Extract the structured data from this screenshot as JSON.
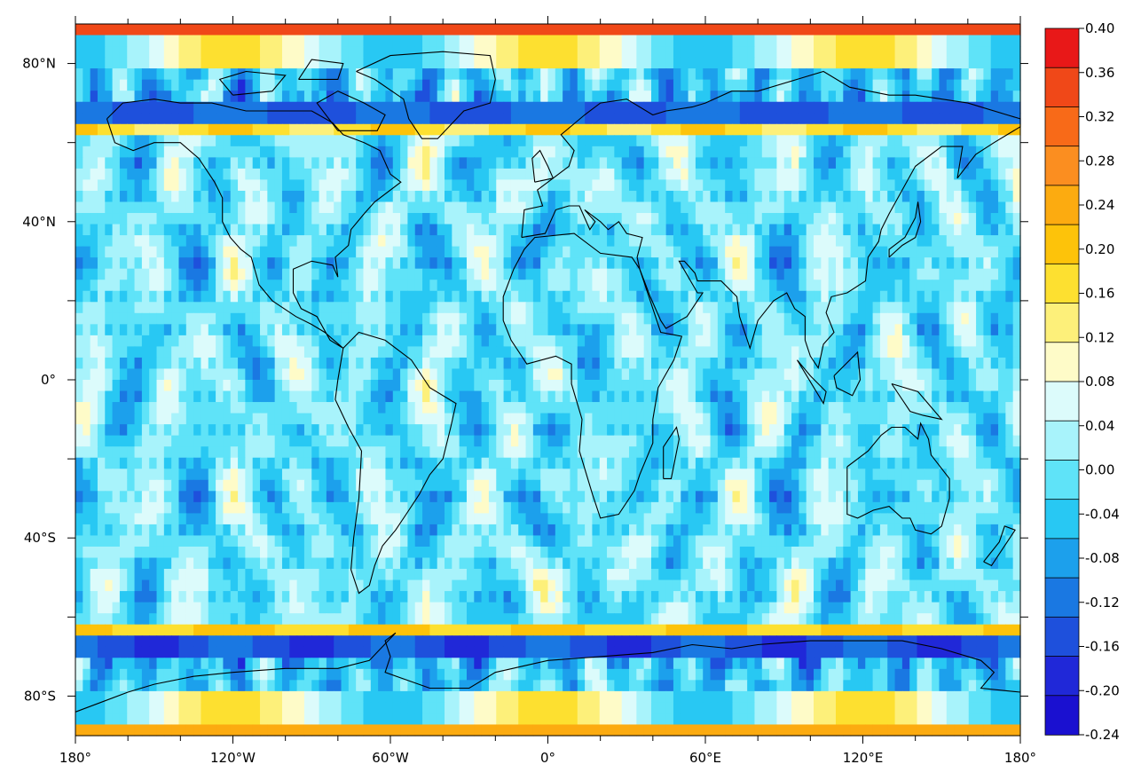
{
  "map": {
    "projection": "cylindrical-equidistant",
    "lon_range": [
      -180,
      180
    ],
    "lat_range": [
      -90,
      90
    ],
    "x_ticks": [
      {
        "lon": -180,
        "label": "180°"
      },
      {
        "lon": -120,
        "label": "120°W"
      },
      {
        "lon": -60,
        "label": "60°W"
      },
      {
        "lon": 0,
        "label": "0°"
      },
      {
        "lon": 60,
        "label": "60°E"
      },
      {
        "lon": 120,
        "label": "120°E"
      },
      {
        "lon": 180,
        "label": "180°"
      }
    ],
    "x_minor_step": 20,
    "y_ticks": [
      {
        "lat": 80,
        "label": "80°N"
      },
      {
        "lat": 40,
        "label": "40°N"
      },
      {
        "lat": 0,
        "label": "0°"
      },
      {
        "lat": -40,
        "label": "40°S"
      },
      {
        "lat": -80,
        "label": "80°S"
      }
    ],
    "y_minor_step": 20,
    "field_description": "wave-interference pattern on a regular lat-lon grid, strong positive band near 90°N and alternating bands near ±67°",
    "grid_cells": {
      "nlon": 128,
      "nlat": 64
    }
  },
  "colorbar": {
    "levels": [
      "0.40",
      "0.36",
      "0.32",
      "0.28",
      "0.24",
      "0.20",
      "0.16",
      "0.12",
      "0.08",
      "0.04",
      "0.00",
      "-0.04",
      "-0.08",
      "-0.12",
      "-0.16",
      "-0.20",
      "-0.24"
    ],
    "colors": [
      "#e81818",
      "#f04818",
      "#f86a18",
      "#fb8e20",
      "#fcab10",
      "#fdc30a",
      "#fde030",
      "#fdf07a",
      "#fefbc8",
      "#dcfbfb",
      "#a8f3fb",
      "#5fe3f8",
      "#28c8f3",
      "#1ca0ec",
      "#1a78e2",
      "#1e50dc",
      "#2028d8",
      "#1a10d0"
    ]
  }
}
